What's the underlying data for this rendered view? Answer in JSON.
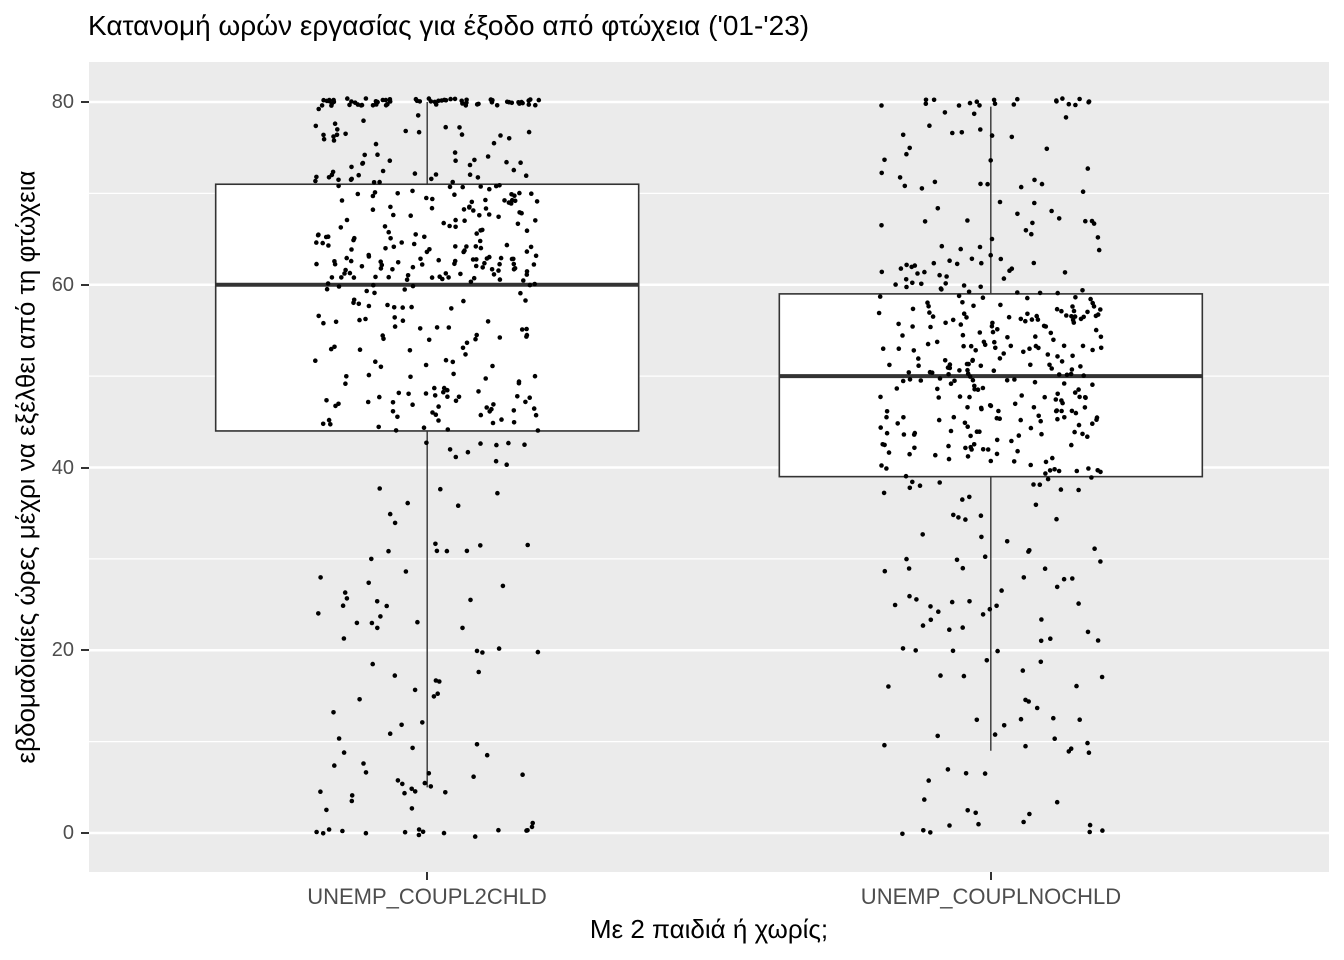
{
  "chart_data": {
    "type": "boxplot",
    "subtype": "boxplot-with-jittered-points",
    "title": "Κατανομή ωρών εργασίας για έξοδο από φτώχεια ('01-'23)",
    "xlabel": "Με 2 παιδιά ή χωρίς;",
    "ylabel": "εβδομαδιαίες ώρες μέχρι να εξέλθει από τη φτώχεια",
    "categories": [
      "UNEMP_COUPL2CHLD",
      "UNEMP_COUPLNOCHLD"
    ],
    "ylim": [
      0,
      80
    ],
    "yticks": [
      0,
      20,
      40,
      60,
      80
    ],
    "minor_gridlines": [
      10,
      30,
      50,
      70
    ],
    "grid": "on",
    "legend": "none",
    "series": [
      {
        "name": "UNEMP_COUPL2CHLD",
        "box": {
          "lower_whisker": 5,
          "q1": 44,
          "median": 60,
          "q3": 71,
          "upper_whisker": 80
        },
        "points": {
          "n": 480,
          "seed": 7,
          "value_cluster_max": 80,
          "value_cluster_min": 0,
          "quantile_knots": [
            [
              0,
              0
            ],
            [
              0.025,
              0
            ],
            [
              0.035,
              1.5
            ],
            [
              0.055,
              4
            ],
            [
              0.07,
              5
            ],
            [
              0.1,
              11
            ],
            [
              0.14,
              20
            ],
            [
              0.18,
              30
            ],
            [
              0.22,
              39
            ],
            [
              0.25,
              44
            ],
            [
              0.32,
              48
            ],
            [
              0.4,
              53
            ],
            [
              0.5,
              60
            ],
            [
              0.6,
              64
            ],
            [
              0.7,
              68.5
            ],
            [
              0.75,
              71
            ],
            [
              0.81,
              74.5
            ],
            [
              0.86,
              79.3
            ],
            [
              0.87,
              80
            ],
            [
              1,
              80
            ]
          ]
        }
      },
      {
        "name": "UNEMP_COUPLNOCHLD",
        "box": {
          "lower_whisker": 9,
          "q1": 39,
          "median": 50,
          "q3": 59,
          "upper_whisker": 79.5
        },
        "points": {
          "n": 445,
          "seed": 99,
          "value_cluster_max": 80,
          "value_cluster_min": 0,
          "quantile_knots": [
            [
              0,
              0
            ],
            [
              0.016,
              0
            ],
            [
              0.025,
              1.5
            ],
            [
              0.04,
              5.5
            ],
            [
              0.05,
              9
            ],
            [
              0.08,
              16
            ],
            [
              0.12,
              23
            ],
            [
              0.17,
              30
            ],
            [
              0.21,
              35
            ],
            [
              0.25,
              39
            ],
            [
              0.33,
              43.5
            ],
            [
              0.42,
              47
            ],
            [
              0.5,
              50
            ],
            [
              0.6,
              53.5
            ],
            [
              0.7,
              57
            ],
            [
              0.75,
              59
            ],
            [
              0.82,
              63
            ],
            [
              0.88,
              68
            ],
            [
              0.93,
              73
            ],
            [
              0.957,
              79
            ],
            [
              0.963,
              80
            ],
            [
              1,
              80
            ]
          ]
        }
      }
    ],
    "style": {
      "panel_bg": "#EBEBEB",
      "grid_color": "#FFFFFF",
      "box_fill": "#FFFFFF",
      "box_stroke": "#333333",
      "point_color": "#000000",
      "axis_text_color": "#4D4D4D",
      "title_color": "#000000",
      "tick_color": "#333333"
    }
  }
}
